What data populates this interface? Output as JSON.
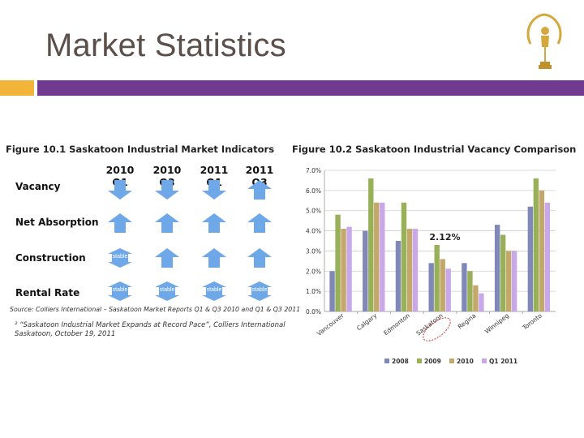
{
  "slide": {
    "title": "Market Statistics"
  },
  "figure_1": {
    "title": "Figure 10.1 Saskatoon Industrial Market Indicators",
    "quarters": [
      "2010 Q1",
      "2010 Q3",
      "2011 Q1",
      "2011 Q3"
    ],
    "rows": [
      {
        "label": "Vacancy",
        "states": [
          "down",
          "down",
          "down",
          "up"
        ]
      },
      {
        "label": "Net Absorption",
        "states": [
          "up",
          "up",
          "up",
          "up"
        ]
      },
      {
        "label": "Construction",
        "states": [
          "stable",
          "up",
          "up",
          "up"
        ]
      },
      {
        "label": "Rental Rate",
        "states": [
          "stable",
          "stable",
          "stable",
          "stable"
        ]
      }
    ],
    "stable_text": "stable",
    "source": "Source: Colliers International – Saskatoon Market Reports Q1 & Q3 2010 and Q1 & Q3 2011",
    "footnote": "² “Saskatoon Industrial Market Expands at Record Pace”, Colliers International Saskatoon, October 19, 2011",
    "arrow_color": "#6fa8e8"
  },
  "chart_data": {
    "type": "bar",
    "title": "Figure 10.2 Saskatoon Industrial Vacancy Comparison",
    "categories": [
      "Vancouver",
      "Calgary",
      "Edmonton",
      "Saskatoon",
      "Regina",
      "Winnipeg",
      "Toronto"
    ],
    "series": [
      {
        "name": "2008",
        "color": "#8088b8",
        "values": [
          2.0,
          4.0,
          3.5,
          2.4,
          2.4,
          4.3,
          5.2
        ]
      },
      {
        "name": "2009",
        "color": "#98b158",
        "values": [
          4.8,
          6.6,
          5.4,
          3.3,
          2.0,
          3.8,
          6.6
        ]
      },
      {
        "name": "2010",
        "color": "#c4a76a",
        "values": [
          4.1,
          5.4,
          4.1,
          2.6,
          1.3,
          3.0,
          6.0
        ]
      },
      {
        "name": "Q1 2011",
        "color": "#c9a8ea",
        "values": [
          4.2,
          5.4,
          4.1,
          2.12,
          0.9,
          3.0,
          5.4
        ]
      }
    ],
    "ylim": [
      0,
      7
    ],
    "yticks": [
      "0.0%",
      "1.0%",
      "2.0%",
      "3.0%",
      "4.0%",
      "5.0%",
      "6.0%",
      "7.0%"
    ],
    "gridlines": true,
    "legend_position": "bottom",
    "annotation": {
      "text": "2.12%",
      "category": "Saskatoon"
    },
    "highlight_category": "Saskatoon",
    "highlight_color": "#d9322b"
  }
}
